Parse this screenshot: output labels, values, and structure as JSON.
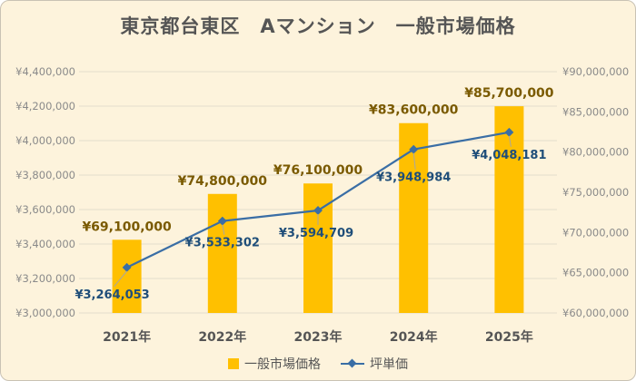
{
  "title": "東京都台東区　Aマンション　一般市場価格",
  "colors": {
    "bar": "#ffc000",
    "line": "#3a6ea5",
    "bar_label": "#7a5a00",
    "line_label": "#1f4e79"
  },
  "chart_data": {
    "type": "bar+line",
    "categories": [
      "2021年",
      "2022年",
      "2023年",
      "2024年",
      "2025年"
    ],
    "series": [
      {
        "name": "一般市場価格",
        "type": "bar",
        "axis": "right",
        "values": [
          69100000,
          74800000,
          76100000,
          83600000,
          85700000
        ],
        "labels": [
          "¥69,100,000",
          "¥74,800,000",
          "¥76,100,000",
          "¥83,600,000",
          "¥85,700,000"
        ]
      },
      {
        "name": "坪単価",
        "type": "line",
        "axis": "left",
        "values": [
          3264053,
          3533302,
          3594709,
          3948984,
          4048181
        ],
        "labels": [
          "¥3,264,053",
          "¥3,533,302",
          "¥3,594,709",
          "¥3,948,984",
          "¥4,048,181"
        ]
      }
    ],
    "y_left": {
      "range": [
        3000000,
        4400000
      ],
      "ticks": [
        3000000,
        3200000,
        3400000,
        3600000,
        3800000,
        4000000,
        4200000,
        4400000
      ],
      "tick_labels": [
        "¥3,000,000",
        "¥3,200,000",
        "¥3,400,000",
        "¥3,600,000",
        "¥3,800,000",
        "¥4,000,000",
        "¥4,200,000",
        "¥4,400,000"
      ]
    },
    "y_right": {
      "range": [
        60000000,
        90000000
      ],
      "ticks": [
        60000000,
        65000000,
        70000000,
        75000000,
        80000000,
        85000000,
        90000000
      ],
      "tick_labels": [
        "¥60,000,000",
        "¥65,000,000",
        "¥70,000,000",
        "¥75,000,000",
        "¥80,000,000",
        "¥85,000,000",
        "¥90,000,000"
      ]
    },
    "grid": true,
    "legend_position": "bottom"
  }
}
